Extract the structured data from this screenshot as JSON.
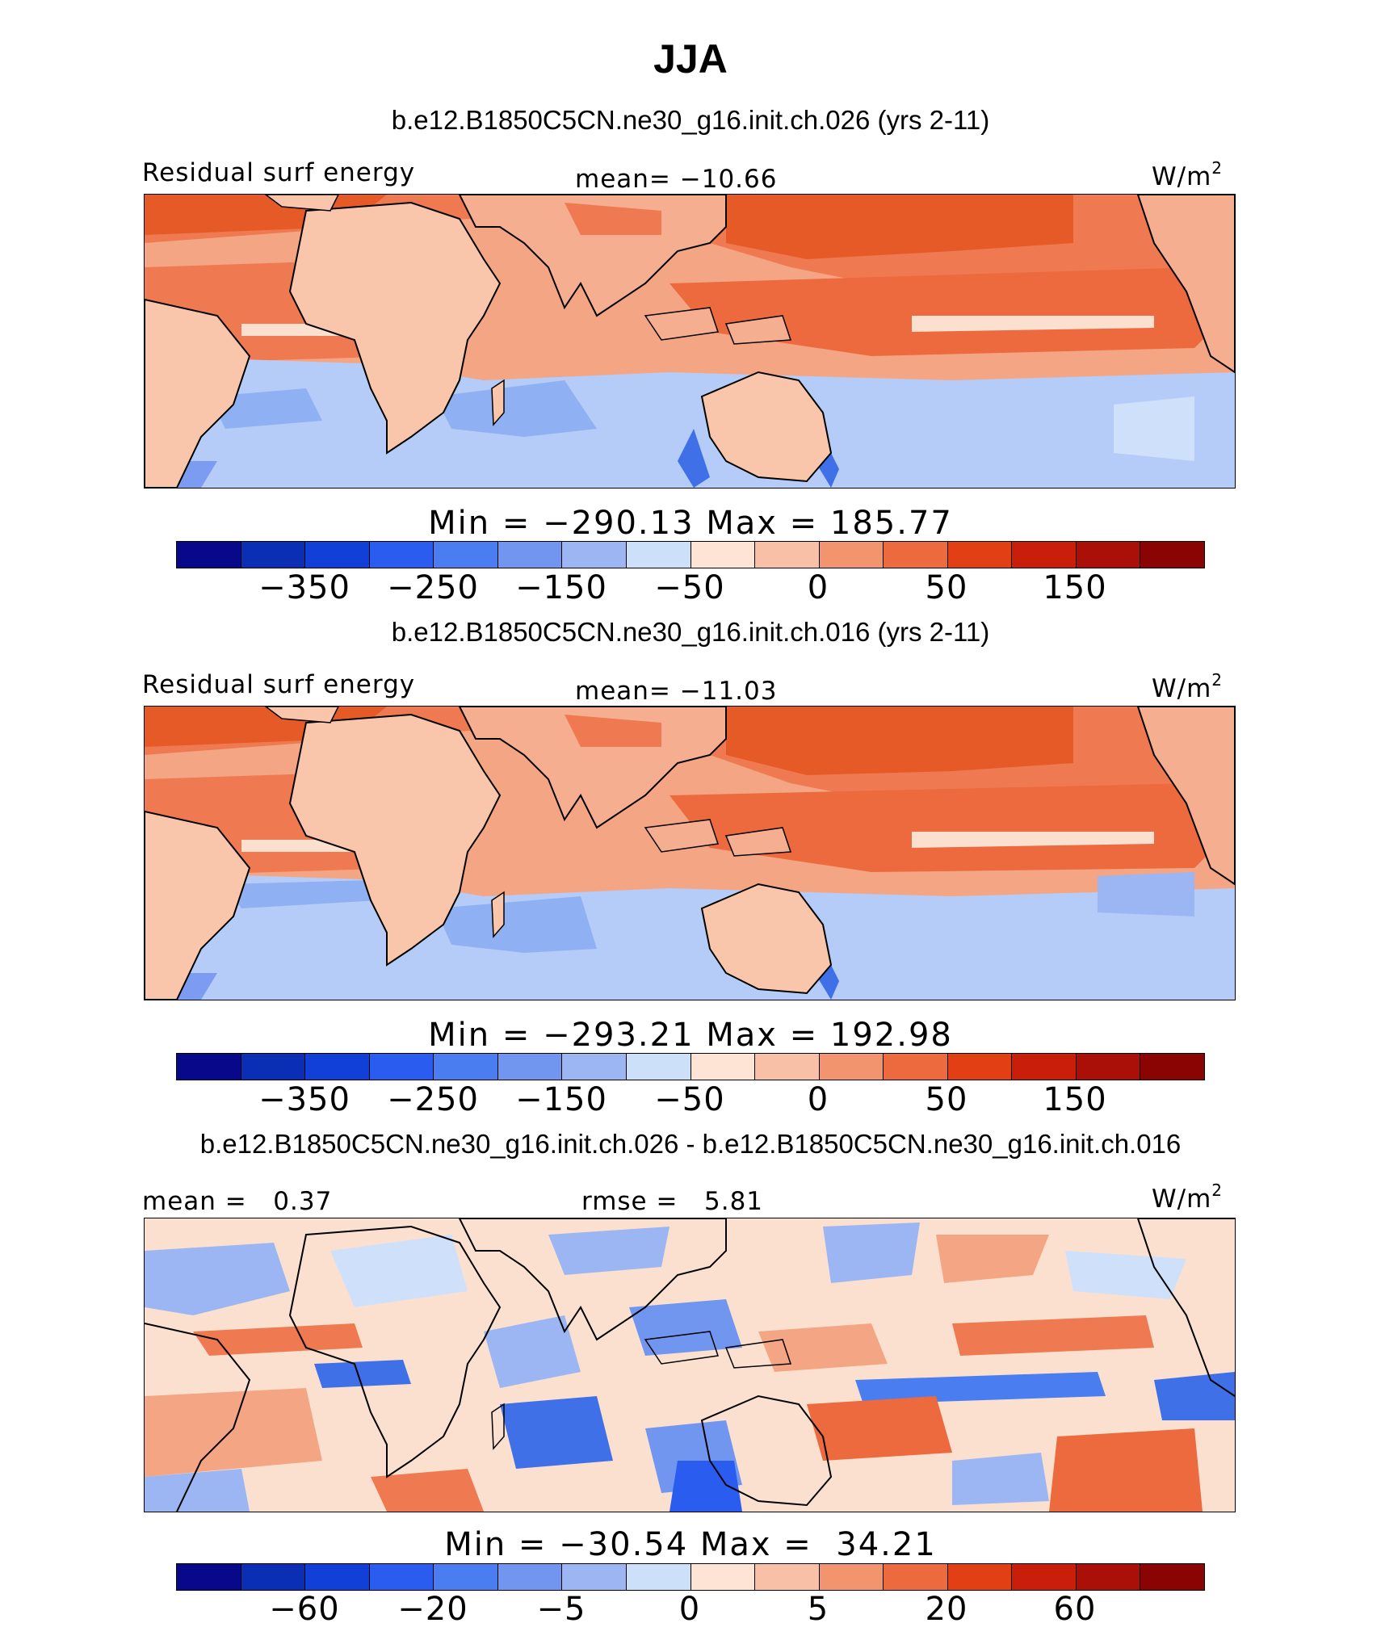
{
  "figure_title": "JJA",
  "panels": [
    {
      "title": "b.e12.B1850C5CN.ne30_g16.init.ch.026 (yrs 2-11)",
      "left_label": "Residual surf energy",
      "center_label": "mean= −10.66",
      "units_base": "W/m",
      "units_exp": "2",
      "minmax": "Min = −290.13 Max = 185.77",
      "colorbar_ticks": [
        "−350",
        "−250",
        "−150",
        "−50",
        "0",
        "50",
        "150"
      ]
    },
    {
      "title": "b.e12.B1850C5CN.ne30_g16.init.ch.016 (yrs 2-11)",
      "left_label": "Residual surf energy",
      "center_label": "mean= −11.03",
      "units_base": "W/m",
      "units_exp": "2",
      "minmax": "Min = −293.21 Max = 192.98",
      "colorbar_ticks": [
        "−350",
        "−250",
        "−150",
        "−50",
        "0",
        "50",
        "150"
      ]
    },
    {
      "title": "b.e12.B1850C5CN.ne30_g16.init.ch.026 - b.e12.B1850C5CN.ne30_g16.init.ch.016",
      "left_label": "mean =   0.37",
      "center_label": "rmse =   5.81",
      "units_base": "W/m",
      "units_exp": "2",
      "minmax": "Min = −30.54 Max =  34.21",
      "colorbar_ticks": [
        "−60",
        "−20",
        "−5",
        "0",
        "5",
        "20",
        "60"
      ]
    }
  ],
  "colorbar_colors": [
    "#08088a",
    "#0a2fb4",
    "#1040d8",
    "#2a5cf0",
    "#4a7ef0",
    "#7096f0",
    "#9cb6f4",
    "#cce0fa",
    "#fde4d4",
    "#f8c0a6",
    "#f2956e",
    "#ec6a3e",
    "#e24014",
    "#c81e0a",
    "#aa1008",
    "#8a0404"
  ],
  "map_legend_classes": {
    "land": "#f9c6ab",
    "warm_ocean": "#ef7f58",
    "hot_ocean": "#e6501e",
    "cold_ocean": "#b4ccf7",
    "very_cold": "#7b9cf0",
    "coast": "#000000"
  }
}
